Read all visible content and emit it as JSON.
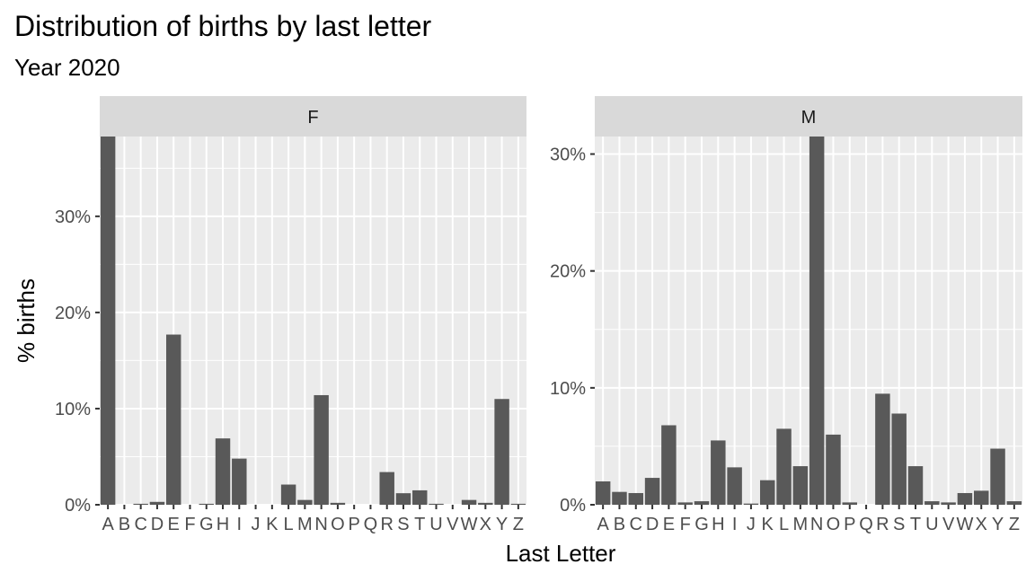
{
  "chart_data": {
    "type": "bar",
    "title": "Distribution of births by last letter",
    "subtitle": "Year 2020",
    "xlabel": "Last Letter",
    "ylabel": "% births",
    "categories": [
      "A",
      "B",
      "C",
      "D",
      "E",
      "F",
      "G",
      "H",
      "I",
      "J",
      "K",
      "L",
      "M",
      "N",
      "O",
      "P",
      "Q",
      "R",
      "S",
      "T",
      "U",
      "V",
      "W",
      "X",
      "Y",
      "Z"
    ],
    "panels": [
      {
        "label": "F",
        "ylim": [
          0,
          38.3
        ],
        "yticks": [
          0,
          10,
          20,
          30
        ],
        "ytick_labels": [
          "0%",
          "10%",
          "20%",
          "30%"
        ],
        "values": [
          38.3,
          0.0,
          0.1,
          0.3,
          17.7,
          0.0,
          0.1,
          6.9,
          4.8,
          0.0,
          0.0,
          2.1,
          0.5,
          11.4,
          0.2,
          0.0,
          0.0,
          3.4,
          1.2,
          1.5,
          0.1,
          0.0,
          0.5,
          0.2,
          11.0,
          0.1
        ]
      },
      {
        "label": "M",
        "ylim": [
          0,
          31.5
        ],
        "yticks": [
          0,
          10,
          20,
          30
        ],
        "ytick_labels": [
          "0%",
          "10%",
          "20%",
          "30%"
        ],
        "values": [
          2.0,
          1.1,
          1.0,
          2.3,
          6.8,
          0.2,
          0.3,
          5.5,
          3.2,
          0.1,
          2.1,
          6.5,
          3.3,
          31.5,
          6.0,
          0.2,
          0.0,
          9.5,
          7.8,
          3.3,
          0.3,
          0.2,
          1.0,
          1.2,
          4.8,
          0.3
        ]
      }
    ],
    "colors": {
      "bar": "#595959",
      "panel_background": "#ebebeb",
      "strip_background": "#d9d9d9",
      "grid": "#ffffff"
    },
    "grid": true,
    "legend": "none"
  }
}
